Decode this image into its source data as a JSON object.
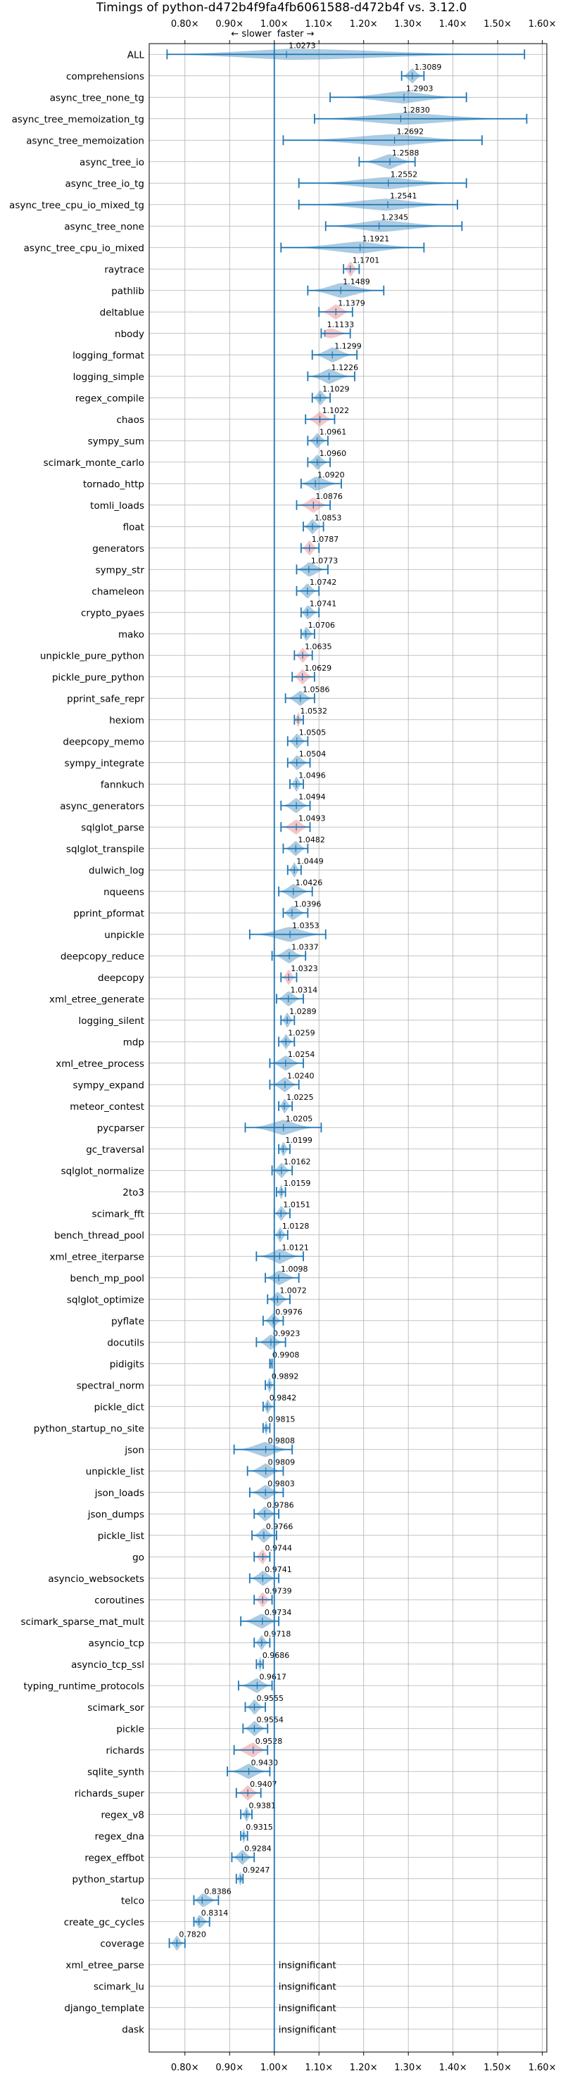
{
  "chart_data": {
    "type": "violin",
    "title": "Timings of python-d472b4f9fa4fb6061588-d472b4f vs. 3.12.0",
    "direction_labels": {
      "slower": "← slower",
      "faster": "faster →"
    },
    "xlim": [
      0.72,
      1.61
    ],
    "x_ticks": [
      0.8,
      0.9,
      1.0,
      1.1,
      1.2,
      1.3,
      1.4,
      1.5,
      1.6
    ],
    "x_tick_labels": [
      "0.80×",
      "0.90×",
      "1.00×",
      "1.10×",
      "1.20×",
      "1.30×",
      "1.40×",
      "1.50×",
      "1.60×"
    ],
    "insignificant_text": "insignificant",
    "colors": {
      "normal": "#1f77b4",
      "highlight": "#e8666e",
      "axis": "#000000",
      "grid": "#b0b0b0"
    },
    "benchmarks": [
      {
        "name": "ALL",
        "value": 1.0273,
        "min": 0.76,
        "max": 1.56
      },
      {
        "name": "comprehensions",
        "value": 1.3089,
        "min": 1.285,
        "max": 1.335
      },
      {
        "name": "async_tree_none_tg",
        "value": 1.2903,
        "min": 1.125,
        "max": 1.43
      },
      {
        "name": "async_tree_memoization_tg",
        "value": 1.283,
        "min": 1.09,
        "max": 1.565
      },
      {
        "name": "async_tree_memoization",
        "value": 1.2692,
        "min": 1.02,
        "max": 1.465
      },
      {
        "name": "async_tree_io",
        "value": 1.2588,
        "min": 1.19,
        "max": 1.315
      },
      {
        "name": "async_tree_io_tg",
        "value": 1.2552,
        "min": 1.055,
        "max": 1.43
      },
      {
        "name": "async_tree_cpu_io_mixed_tg",
        "value": 1.2541,
        "min": 1.055,
        "max": 1.41
      },
      {
        "name": "async_tree_none",
        "value": 1.2345,
        "min": 1.115,
        "max": 1.42
      },
      {
        "name": "async_tree_cpu_io_mixed",
        "value": 1.1921,
        "min": 1.015,
        "max": 1.335
      },
      {
        "name": "raytrace",
        "value": 1.1701,
        "min": 1.155,
        "max": 1.19,
        "highlight": true
      },
      {
        "name": "pathlib",
        "value": 1.1489,
        "min": 1.075,
        "max": 1.245
      },
      {
        "name": "deltablue",
        "value": 1.1379,
        "min": 1.1,
        "max": 1.175,
        "highlight": true
      },
      {
        "name": "nbody",
        "value": 1.1133,
        "min": 1.105,
        "max": 1.17,
        "highlight": true
      },
      {
        "name": "logging_format",
        "value": 1.1299,
        "min": 1.085,
        "max": 1.185
      },
      {
        "name": "logging_simple",
        "value": 1.1226,
        "min": 1.075,
        "max": 1.18
      },
      {
        "name": "regex_compile",
        "value": 1.1029,
        "min": 1.085,
        "max": 1.125
      },
      {
        "name": "chaos",
        "value": 1.1022,
        "min": 1.07,
        "max": 1.135,
        "highlight": true
      },
      {
        "name": "sympy_sum",
        "value": 1.0961,
        "min": 1.075,
        "max": 1.12
      },
      {
        "name": "scimark_monte_carlo",
        "value": 1.096,
        "min": 1.075,
        "max": 1.125
      },
      {
        "name": "tornado_http",
        "value": 1.092,
        "min": 1.06,
        "max": 1.15
      },
      {
        "name": "tomli_loads",
        "value": 1.0876,
        "min": 1.05,
        "max": 1.125,
        "highlight": true
      },
      {
        "name": "float",
        "value": 1.0853,
        "min": 1.065,
        "max": 1.11
      },
      {
        "name": "generators",
        "value": 1.0787,
        "min": 1.06,
        "max": 1.1,
        "highlight": true
      },
      {
        "name": "sympy_str",
        "value": 1.0773,
        "min": 1.05,
        "max": 1.12
      },
      {
        "name": "chameleon",
        "value": 1.0742,
        "min": 1.05,
        "max": 1.1
      },
      {
        "name": "crypto_pyaes",
        "value": 1.0741,
        "min": 1.06,
        "max": 1.1
      },
      {
        "name": "mako",
        "value": 1.0706,
        "min": 1.06,
        "max": 1.09
      },
      {
        "name": "unpickle_pure_python",
        "value": 1.0635,
        "min": 1.045,
        "max": 1.085,
        "highlight": true
      },
      {
        "name": "pickle_pure_python",
        "value": 1.0629,
        "min": 1.04,
        "max": 1.09,
        "highlight": true
      },
      {
        "name": "pprint_safe_repr",
        "value": 1.0586,
        "min": 1.025,
        "max": 1.09
      },
      {
        "name": "hexiom",
        "value": 1.0532,
        "min": 1.045,
        "max": 1.065,
        "highlight": true
      },
      {
        "name": "deepcopy_memo",
        "value": 1.0505,
        "min": 1.03,
        "max": 1.075
      },
      {
        "name": "sympy_integrate",
        "value": 1.0504,
        "min": 1.03,
        "max": 1.08
      },
      {
        "name": "fannkuch",
        "value": 1.0496,
        "min": 1.035,
        "max": 1.065
      },
      {
        "name": "async_generators",
        "value": 1.0494,
        "min": 1.015,
        "max": 1.08
      },
      {
        "name": "sqlglot_parse",
        "value": 1.0493,
        "min": 1.015,
        "max": 1.08,
        "highlight": true
      },
      {
        "name": "sqlglot_transpile",
        "value": 1.0482,
        "min": 1.02,
        "max": 1.075
      },
      {
        "name": "dulwich_log",
        "value": 1.0449,
        "min": 1.03,
        "max": 1.06
      },
      {
        "name": "nqueens",
        "value": 1.0426,
        "min": 1.01,
        "max": 1.085
      },
      {
        "name": "pprint_pformat",
        "value": 1.0396,
        "min": 1.02,
        "max": 1.075
      },
      {
        "name": "unpickle",
        "value": 1.0353,
        "min": 0.945,
        "max": 1.115
      },
      {
        "name": "deepcopy_reduce",
        "value": 1.0337,
        "min": 0.995,
        "max": 1.07
      },
      {
        "name": "deepcopy",
        "value": 1.0323,
        "min": 1.015,
        "max": 1.05,
        "highlight": true
      },
      {
        "name": "xml_etree_generate",
        "value": 1.0314,
        "min": 1.005,
        "max": 1.065
      },
      {
        "name": "logging_silent",
        "value": 1.0289,
        "min": 1.015,
        "max": 1.045
      },
      {
        "name": "mdp",
        "value": 1.0259,
        "min": 1.01,
        "max": 1.045
      },
      {
        "name": "xml_etree_process",
        "value": 1.0254,
        "min": 0.99,
        "max": 1.065
      },
      {
        "name": "sympy_expand",
        "value": 1.024,
        "min": 0.99,
        "max": 1.055
      },
      {
        "name": "meteor_contest",
        "value": 1.0225,
        "min": 1.01,
        "max": 1.04
      },
      {
        "name": "pycparser",
        "value": 1.0205,
        "min": 0.935,
        "max": 1.105
      },
      {
        "name": "gc_traversal",
        "value": 1.0199,
        "min": 1.01,
        "max": 1.035
      },
      {
        "name": "sqlglot_normalize",
        "value": 1.0162,
        "min": 0.995,
        "max": 1.04
      },
      {
        "name": "2to3",
        "value": 1.0159,
        "min": 1.005,
        "max": 1.025
      },
      {
        "name": "scimark_fft",
        "value": 1.0151,
        "min": 1.0,
        "max": 1.035
      },
      {
        "name": "bench_thread_pool",
        "value": 1.0128,
        "min": 1.0,
        "max": 1.03
      },
      {
        "name": "xml_etree_iterparse",
        "value": 1.0121,
        "min": 0.96,
        "max": 1.065
      },
      {
        "name": "bench_mp_pool",
        "value": 1.0098,
        "min": 0.98,
        "max": 1.055
      },
      {
        "name": "sqlglot_optimize",
        "value": 1.0072,
        "min": 0.985,
        "max": 1.035
      },
      {
        "name": "pyflate",
        "value": 0.9976,
        "min": 0.975,
        "max": 1.02
      },
      {
        "name": "docutils",
        "value": 0.9923,
        "min": 0.96,
        "max": 1.025
      },
      {
        "name": "pidigits",
        "value": 0.9908,
        "min": 0.99,
        "max": 0.995
      },
      {
        "name": "spectral_norm",
        "value": 0.9892,
        "min": 0.98,
        "max": 1.0
      },
      {
        "name": "pickle_dict",
        "value": 0.9842,
        "min": 0.975,
        "max": 1.0
      },
      {
        "name": "python_startup_no_site",
        "value": 0.9815,
        "min": 0.975,
        "max": 0.99
      },
      {
        "name": "json",
        "value": 0.9808,
        "min": 0.91,
        "max": 1.04
      },
      {
        "name": "unpickle_list",
        "value": 0.9809,
        "min": 0.94,
        "max": 1.02
      },
      {
        "name": "json_loads",
        "value": 0.9803,
        "min": 0.945,
        "max": 1.02
      },
      {
        "name": "json_dumps",
        "value": 0.9786,
        "min": 0.955,
        "max": 1.01
      },
      {
        "name": "pickle_list",
        "value": 0.9766,
        "min": 0.95,
        "max": 1.005
      },
      {
        "name": "go",
        "value": 0.9744,
        "min": 0.955,
        "max": 0.99,
        "highlight": true
      },
      {
        "name": "asyncio_websockets",
        "value": 0.9741,
        "min": 0.945,
        "max": 1.01
      },
      {
        "name": "coroutines",
        "value": 0.9739,
        "min": 0.955,
        "max": 0.995,
        "highlight": true
      },
      {
        "name": "scimark_sparse_mat_mult",
        "value": 0.9734,
        "min": 0.925,
        "max": 1.01
      },
      {
        "name": "asyncio_tcp",
        "value": 0.9718,
        "min": 0.955,
        "max": 0.99
      },
      {
        "name": "asyncio_tcp_ssl",
        "value": 0.9686,
        "min": 0.96,
        "max": 0.975
      },
      {
        "name": "typing_runtime_protocols",
        "value": 0.9617,
        "min": 0.92,
        "max": 0.995
      },
      {
        "name": "scimark_sor",
        "value": 0.9555,
        "min": 0.935,
        "max": 0.98
      },
      {
        "name": "pickle",
        "value": 0.9554,
        "min": 0.93,
        "max": 0.985
      },
      {
        "name": "richards",
        "value": 0.9528,
        "min": 0.91,
        "max": 0.985,
        "highlight": true
      },
      {
        "name": "sqlite_synth",
        "value": 0.943,
        "min": 0.895,
        "max": 0.99
      },
      {
        "name": "richards_super",
        "value": 0.9407,
        "min": 0.915,
        "max": 0.97,
        "highlight": true
      },
      {
        "name": "regex_v8",
        "value": 0.9381,
        "min": 0.925,
        "max": 0.95
      },
      {
        "name": "regex_dna",
        "value": 0.9315,
        "min": 0.925,
        "max": 0.94
      },
      {
        "name": "regex_effbot",
        "value": 0.9284,
        "min": 0.905,
        "max": 0.955
      },
      {
        "name": "python_startup",
        "value": 0.9247,
        "min": 0.915,
        "max": 0.93
      },
      {
        "name": "telco",
        "value": 0.8386,
        "min": 0.82,
        "max": 0.875
      },
      {
        "name": "create_gc_cycles",
        "value": 0.8314,
        "min": 0.82,
        "max": 0.855
      },
      {
        "name": "coverage",
        "value": 0.782,
        "min": 0.765,
        "max": 0.8
      },
      {
        "name": "xml_etree_parse",
        "insignificant": true
      },
      {
        "name": "scimark_lu",
        "insignificant": true
      },
      {
        "name": "django_template",
        "insignificant": true
      },
      {
        "name": "dask",
        "insignificant": true
      }
    ]
  }
}
